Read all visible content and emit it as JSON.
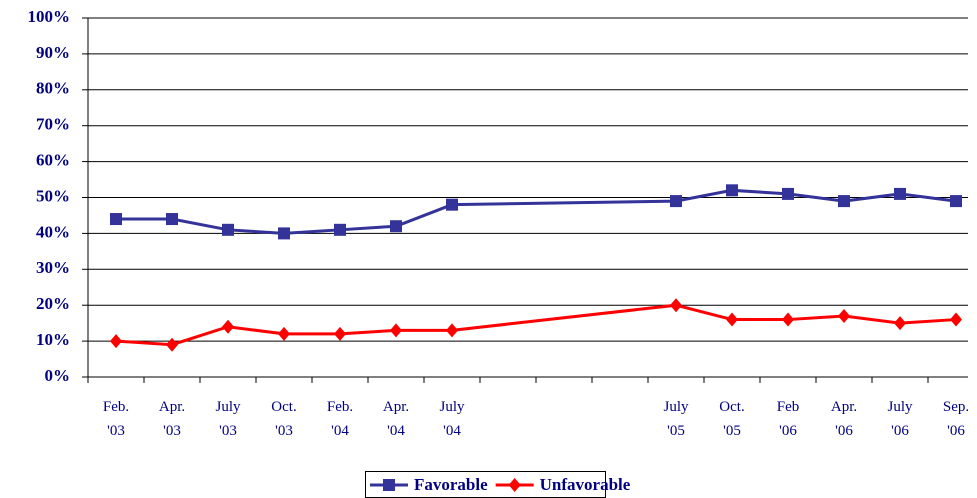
{
  "chart_data": {
    "type": "line",
    "categories": [
      "Feb. '03",
      "Apr. '03",
      "July '03",
      "Oct. '03",
      "Feb. '04",
      "Apr. '04",
      "July '04",
      null,
      null,
      null,
      "July '05",
      "Oct. '05",
      "Feb '06",
      "Apr. '06",
      "July '06",
      "Sep. '06"
    ],
    "series": [
      {
        "name": "Favorable",
        "color": "#333399",
        "marker": "square",
        "values": [
          44,
          44,
          41,
          40,
          41,
          42,
          48,
          null,
          null,
          null,
          49,
          52,
          51,
          49,
          51,
          49
        ]
      },
      {
        "name": "Unfavorable",
        "color": "#ff0000",
        "marker": "diamond",
        "values": [
          10,
          9,
          14,
          12,
          12,
          13,
          13,
          null,
          null,
          null,
          20,
          16,
          16,
          17,
          15,
          16
        ]
      }
    ],
    "ylim": [
      0,
      100
    ],
    "yticks": [
      {
        "value": 0,
        "label": "0%"
      },
      {
        "value": 10,
        "label": "10%"
      },
      {
        "value": 20,
        "label": "20%"
      },
      {
        "value": 30,
        "label": "30%"
      },
      {
        "value": 40,
        "label": "40%"
      },
      {
        "value": 50,
        "label": "50%"
      },
      {
        "value": 60,
        "label": "60%"
      },
      {
        "value": 70,
        "label": "70%"
      },
      {
        "value": 80,
        "label": "80%"
      },
      {
        "value": 90,
        "label": "90%"
      },
      {
        "value": 100,
        "label": "100%"
      }
    ],
    "grid": true,
    "legend": "bottom"
  }
}
